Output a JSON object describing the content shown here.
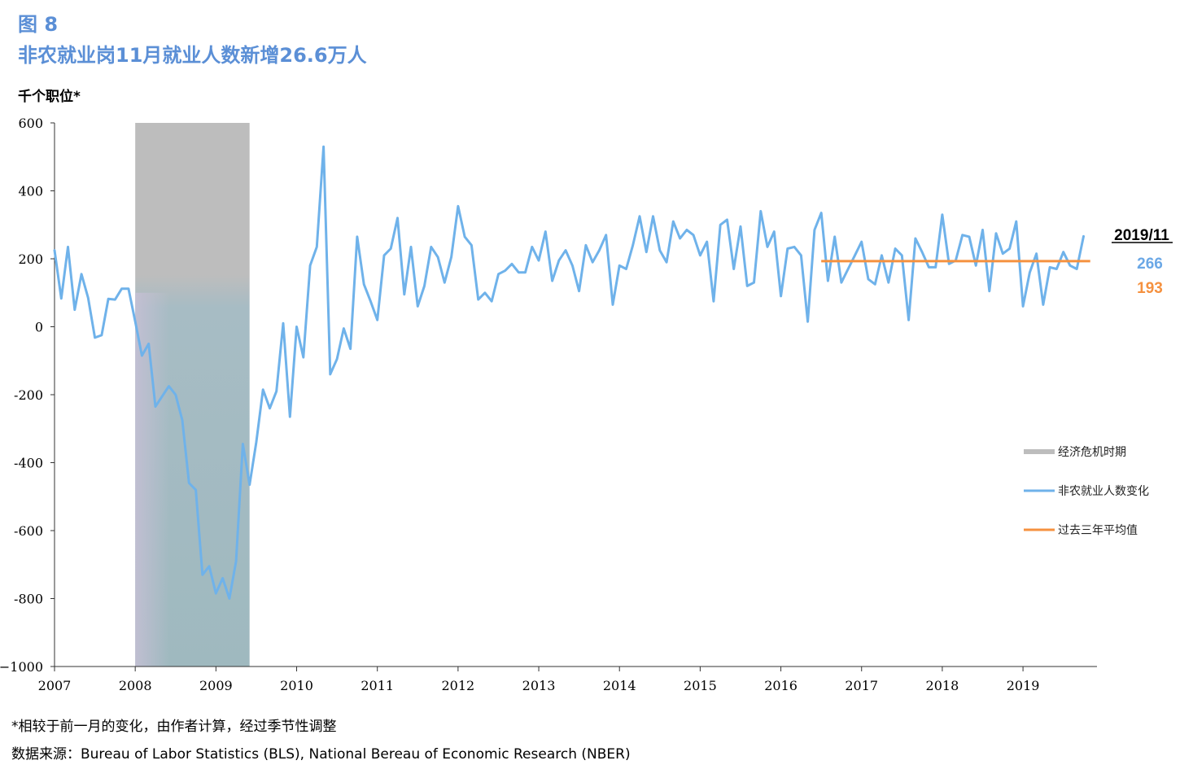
{
  "figure_label": "图 8",
  "title": "非农就业岗11月就业人数新增26.6万人",
  "y_unit": "千个职位*",
  "footnote": "*相较于前一月的变化，由作者计算，经过季节性调整",
  "source": "数据来源：Bureau of Labor Statistics (BLS), National Bereau of Economic Research (NBER)",
  "annotation": {
    "date": "2019/11",
    "latest_value": "266",
    "average_value": "193",
    "latest_color": "#6ba8e6",
    "average_color": "#f5913f"
  },
  "colors": {
    "series": "#6fb2ea",
    "average": "#f5913f",
    "recession": "#bdbdbd",
    "title": "#5b8fd6"
  },
  "chart_data": {
    "type": "line",
    "ylim": [
      -1000,
      600
    ],
    "y_ticks": [
      600,
      400,
      200,
      0,
      -200,
      -400,
      -600,
      -800,
      -1000
    ],
    "y_tick_labels": [
      "600",
      "400",
      "200",
      "0",
      "-200",
      "-400",
      "-600",
      "-800",
      "−1000"
    ],
    "x_range": [
      "2007-01",
      "2019-12"
    ],
    "x_tick_labels": [
      "2007",
      "2008",
      "2009",
      "2010",
      "2011",
      "2012",
      "2013",
      "2014",
      "2015",
      "2016",
      "2017",
      "2018",
      "2019"
    ],
    "grid": false,
    "legend_position": "right",
    "recession": {
      "label": "经济危机时期",
      "start": "2008-01",
      "end": "2009-06"
    },
    "series": [
      {
        "name": "非农就业人数变化",
        "start": "2007-01",
        "frequency": "monthly",
        "values": [
          225,
          83,
          235,
          50,
          155,
          85,
          -32,
          -25,
          82,
          80,
          112,
          112,
          15,
          -85,
          -50,
          -235,
          -205,
          -175,
          -200,
          -275,
          -460,
          -480,
          -730,
          -705,
          -785,
          -740,
          -800,
          -690,
          -345,
          -465,
          -340,
          -185,
          -240,
          -190,
          10,
          -265,
          0,
          -90,
          180,
          235,
          530,
          -140,
          -95,
          -5,
          -65,
          265,
          125,
          75,
          20,
          210,
          230,
          320,
          95,
          235,
          60,
          120,
          235,
          205,
          130,
          205,
          355,
          265,
          240,
          80,
          100,
          75,
          155,
          165,
          185,
          160,
          160,
          235,
          195,
          280,
          135,
          195,
          225,
          180,
          105,
          240,
          190,
          225,
          270,
          65,
          180,
          170,
          240,
          325,
          220,
          325,
          225,
          190,
          310,
          260,
          285,
          270,
          210,
          250,
          75,
          300,
          315,
          170,
          295,
          120,
          130,
          340,
          235,
          280,
          90,
          230,
          235,
          210,
          15,
          285,
          335,
          135,
          265,
          130,
          170,
          210,
          250,
          140,
          125,
          210,
          130,
          230,
          210,
          20,
          260,
          220,
          175,
          175,
          330,
          185,
          195,
          270,
          265,
          180,
          285,
          105,
          275,
          215,
          230,
          310,
          60,
          160,
          215,
          65,
          175,
          170,
          220,
          180,
          170,
          266
        ]
      },
      {
        "name": "过去三年平均值",
        "start": "2016-07",
        "end": "2019-11",
        "values": [
          193,
          193
        ]
      }
    ]
  }
}
